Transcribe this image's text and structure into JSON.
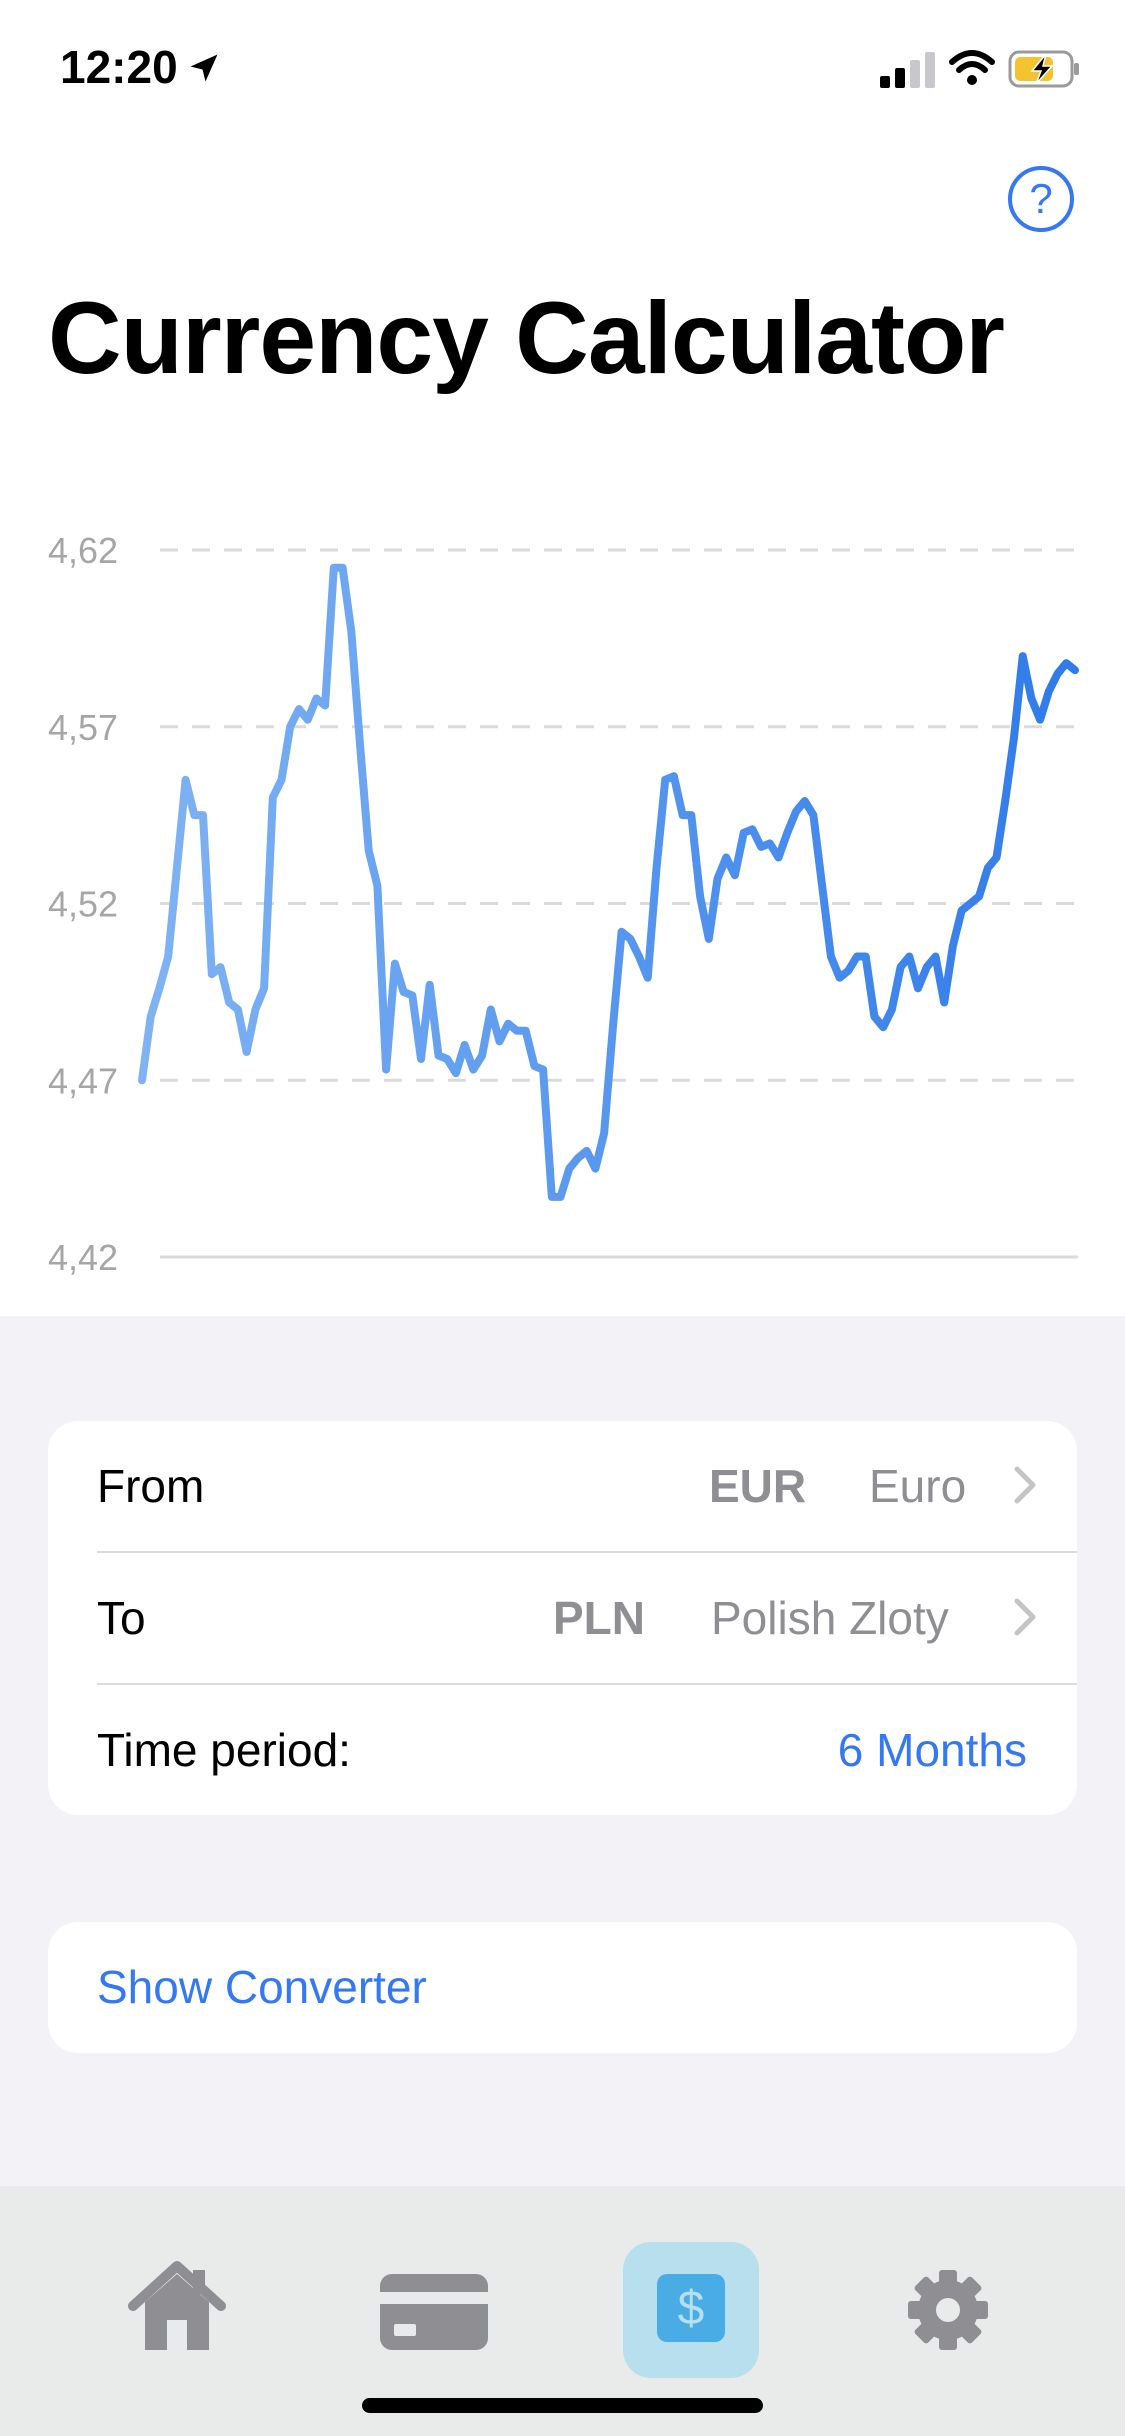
{
  "status_bar": {
    "time": "12:20"
  },
  "header": {
    "title": "Currency Calculator",
    "help_symbol": "?"
  },
  "chart_data": {
    "type": "line",
    "title": "",
    "xlabel": "",
    "ylabel": "",
    "y_ticks": [
      "4,62",
      "4,57",
      "4,52",
      "4,47",
      "4,42"
    ],
    "ylim": [
      4.42,
      4.62
    ],
    "grid": "dashed horizontal",
    "series": [
      {
        "color": "#3f87ee",
        "values": [
          4.47,
          4.488,
          4.496,
          4.505,
          4.53,
          4.555,
          4.545,
          4.545,
          4.5,
          4.502,
          4.492,
          4.49,
          4.478,
          4.49,
          4.496,
          4.55,
          4.555,
          4.57,
          4.575,
          4.572,
          4.578,
          4.576,
          4.615,
          4.615,
          4.597,
          4.565,
          4.535,
          4.525,
          4.473,
          4.503,
          4.495,
          4.494,
          4.476,
          4.497,
          4.477,
          4.476,
          4.472,
          4.48,
          4.473,
          4.477,
          4.49,
          4.481,
          4.486,
          4.484,
          4.484,
          4.474,
          4.473,
          4.437,
          4.437,
          4.445,
          4.448,
          4.45,
          4.445,
          4.455,
          4.485,
          4.512,
          4.51,
          4.505,
          4.499,
          4.53,
          4.555,
          4.556,
          4.545,
          4.545,
          4.522,
          4.51,
          4.527,
          4.533,
          4.528,
          4.54,
          4.541,
          4.536,
          4.537,
          4.533,
          4.54,
          4.546,
          4.549,
          4.545,
          4.525,
          4.505,
          4.499,
          4.501,
          4.505,
          4.505,
          4.488,
          4.485,
          4.49,
          4.502,
          4.505,
          4.496,
          4.502,
          4.505,
          4.492,
          4.508,
          4.518,
          4.52,
          4.522,
          4.53,
          4.533,
          4.549,
          4.567,
          4.59,
          4.578,
          4.572,
          4.58,
          4.585,
          4.588,
          4.586
        ]
      }
    ]
  },
  "settings": {
    "from_label": "From",
    "from_code": "EUR",
    "from_name": "Euro",
    "to_label": "To",
    "to_code": "PLN",
    "to_name": "Polish Zloty",
    "period_label": "Time period:",
    "period_value": "6 Months"
  },
  "converter": {
    "label": "Show Converter"
  },
  "tabbar": {
    "tabs": [
      {
        "icon": "house-icon",
        "active": false
      },
      {
        "icon": "credit-card-icon",
        "active": false
      },
      {
        "icon": "dollar-icon",
        "active": true,
        "glyph": "$"
      },
      {
        "icon": "gear-icon",
        "active": false
      }
    ]
  },
  "colors": {
    "accent": "#3478f6",
    "line": "#3f87ee",
    "active_tab_bg": "#b8dfee",
    "active_tab_icon": "#4aace4"
  }
}
